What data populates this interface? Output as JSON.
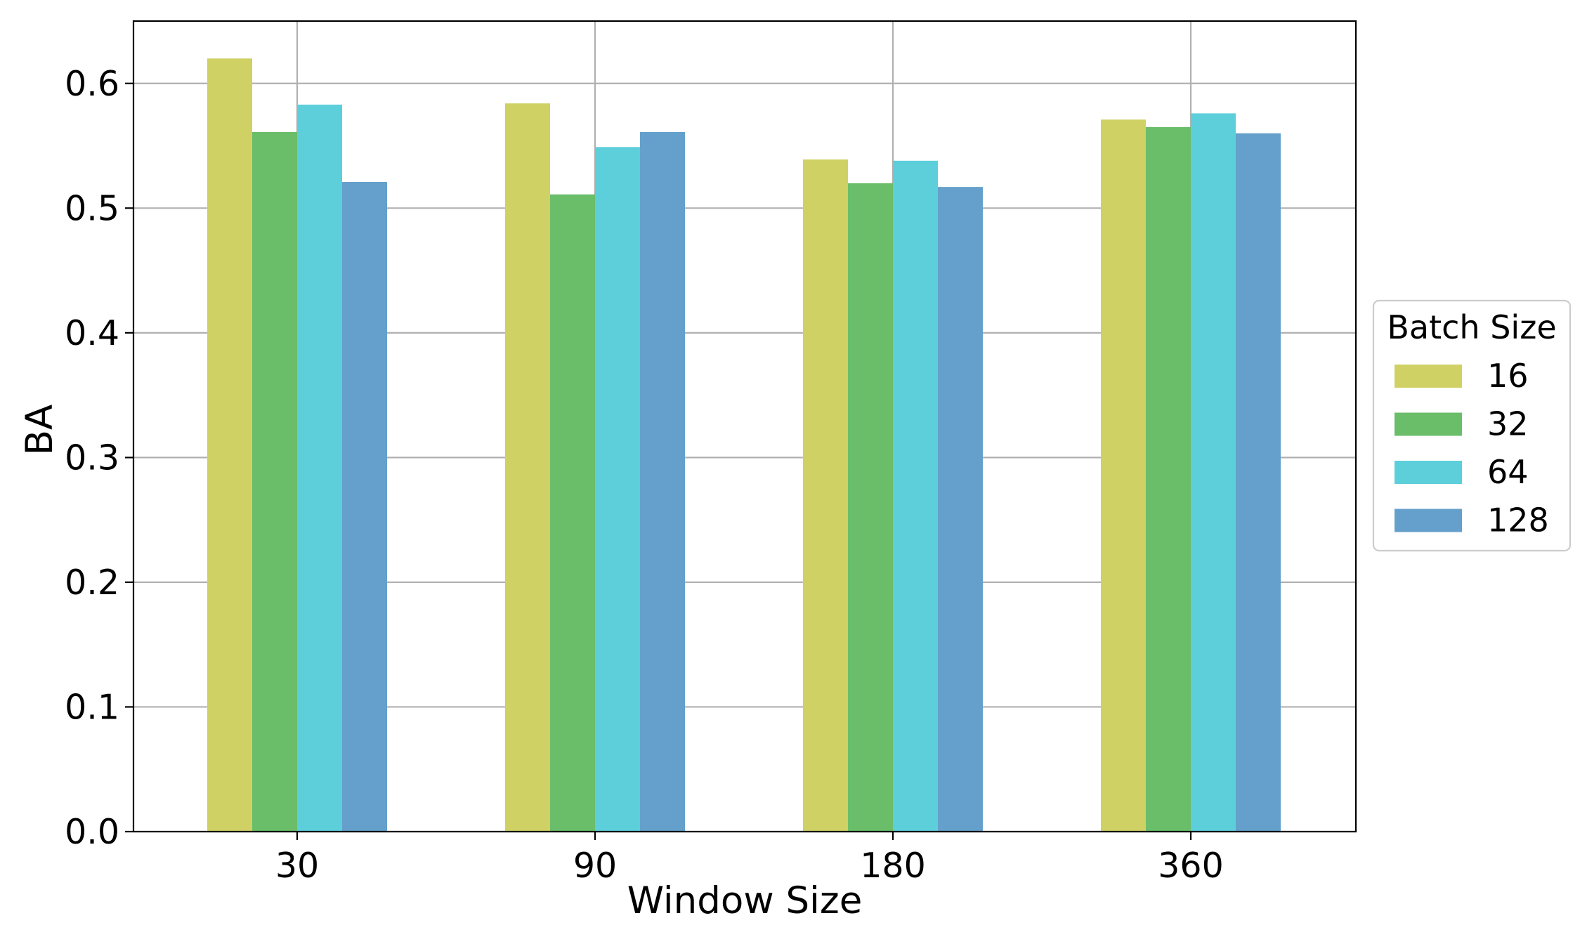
{
  "chart_data": {
    "type": "bar",
    "xlabel": "Window Size",
    "ylabel": "BA",
    "categories": [
      "30",
      "90",
      "180",
      "360"
    ],
    "ylim": [
      0,
      0.65
    ],
    "yticks": [
      "0.0",
      "0.1",
      "0.2",
      "0.3",
      "0.4",
      "0.5",
      "0.6"
    ],
    "grid": true,
    "legend": {
      "title": "Batch Size",
      "placement": "center-right-outside"
    },
    "series": [
      {
        "name": "16",
        "color": "#d0d164",
        "values": [
          0.62,
          0.584,
          0.539,
          0.571
        ]
      },
      {
        "name": "32",
        "color": "#6abd69",
        "values": [
          0.561,
          0.511,
          0.52,
          0.565
        ]
      },
      {
        "name": "64",
        "color": "#5ccfdb",
        "values": [
          0.583,
          0.549,
          0.538,
          0.576
        ]
      },
      {
        "name": "128",
        "color": "#64a0cb",
        "values": [
          0.521,
          0.561,
          0.517,
          0.56
        ]
      }
    ]
  }
}
